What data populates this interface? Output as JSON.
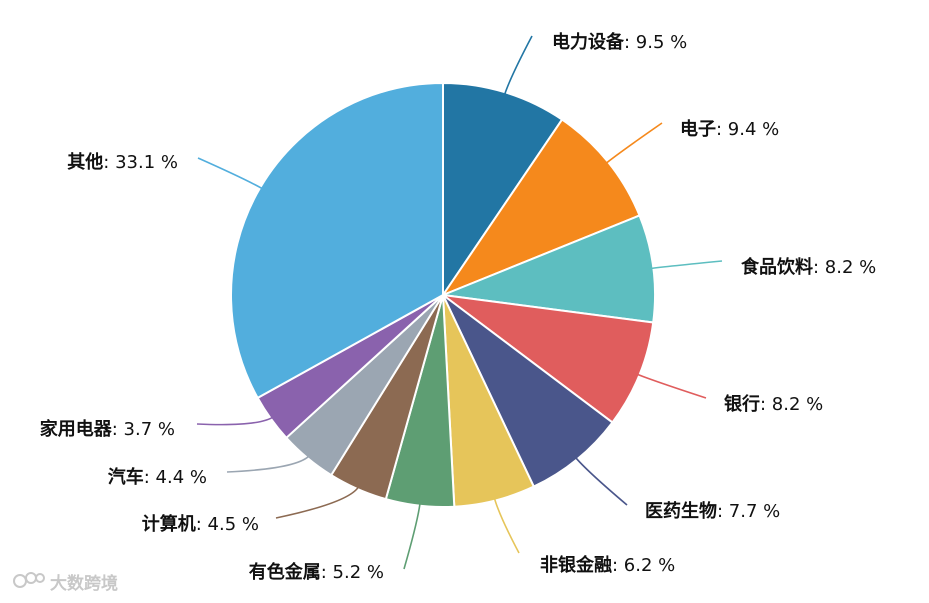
{
  "chart_data": {
    "type": "pie",
    "title": "",
    "slices": [
      {
        "label": "电力设备",
        "value": 9.5,
        "value_text": "9.5 %",
        "color": "#2276a4"
      },
      {
        "label": "电子",
        "value": 9.4,
        "value_text": "9.4 %",
        "color": "#f5891c"
      },
      {
        "label": "食品饮料",
        "value": 8.2,
        "value_text": "8.2 %",
        "color": "#5dbec0"
      },
      {
        "label": "银行",
        "value": 8.2,
        "value_text": "8.2 %",
        "color": "#e05d5d"
      },
      {
        "label": "医药生物",
        "value": 7.7,
        "value_text": "7.7 %",
        "color": "#4a568b"
      },
      {
        "label": "非银金融",
        "value": 6.2,
        "value_text": "6.2 %",
        "color": "#e6c55a"
      },
      {
        "label": "有色金属",
        "value": 5.2,
        "value_text": "5.2 %",
        "color": "#5e9e73"
      },
      {
        "label": "计算机",
        "value": 4.5,
        "value_text": "4.5 %",
        "color": "#8c6a52"
      },
      {
        "label": "汽车",
        "value": 4.4,
        "value_text": "4.4 %",
        "color": "#9ba6b2"
      },
      {
        "label": "家用电器",
        "value": 3.7,
        "value_text": "3.7 %",
        "color": "#8a62ad"
      },
      {
        "label": "其他",
        "value": 33.1,
        "value_text": "33.1 %",
        "color": "#52aedd"
      }
    ],
    "start_angle_deg": 0,
    "direction": "clockwise",
    "label_position": "outside-with-leader-lines",
    "legend": "none"
  },
  "watermark": {
    "text": "大数跨境"
  }
}
